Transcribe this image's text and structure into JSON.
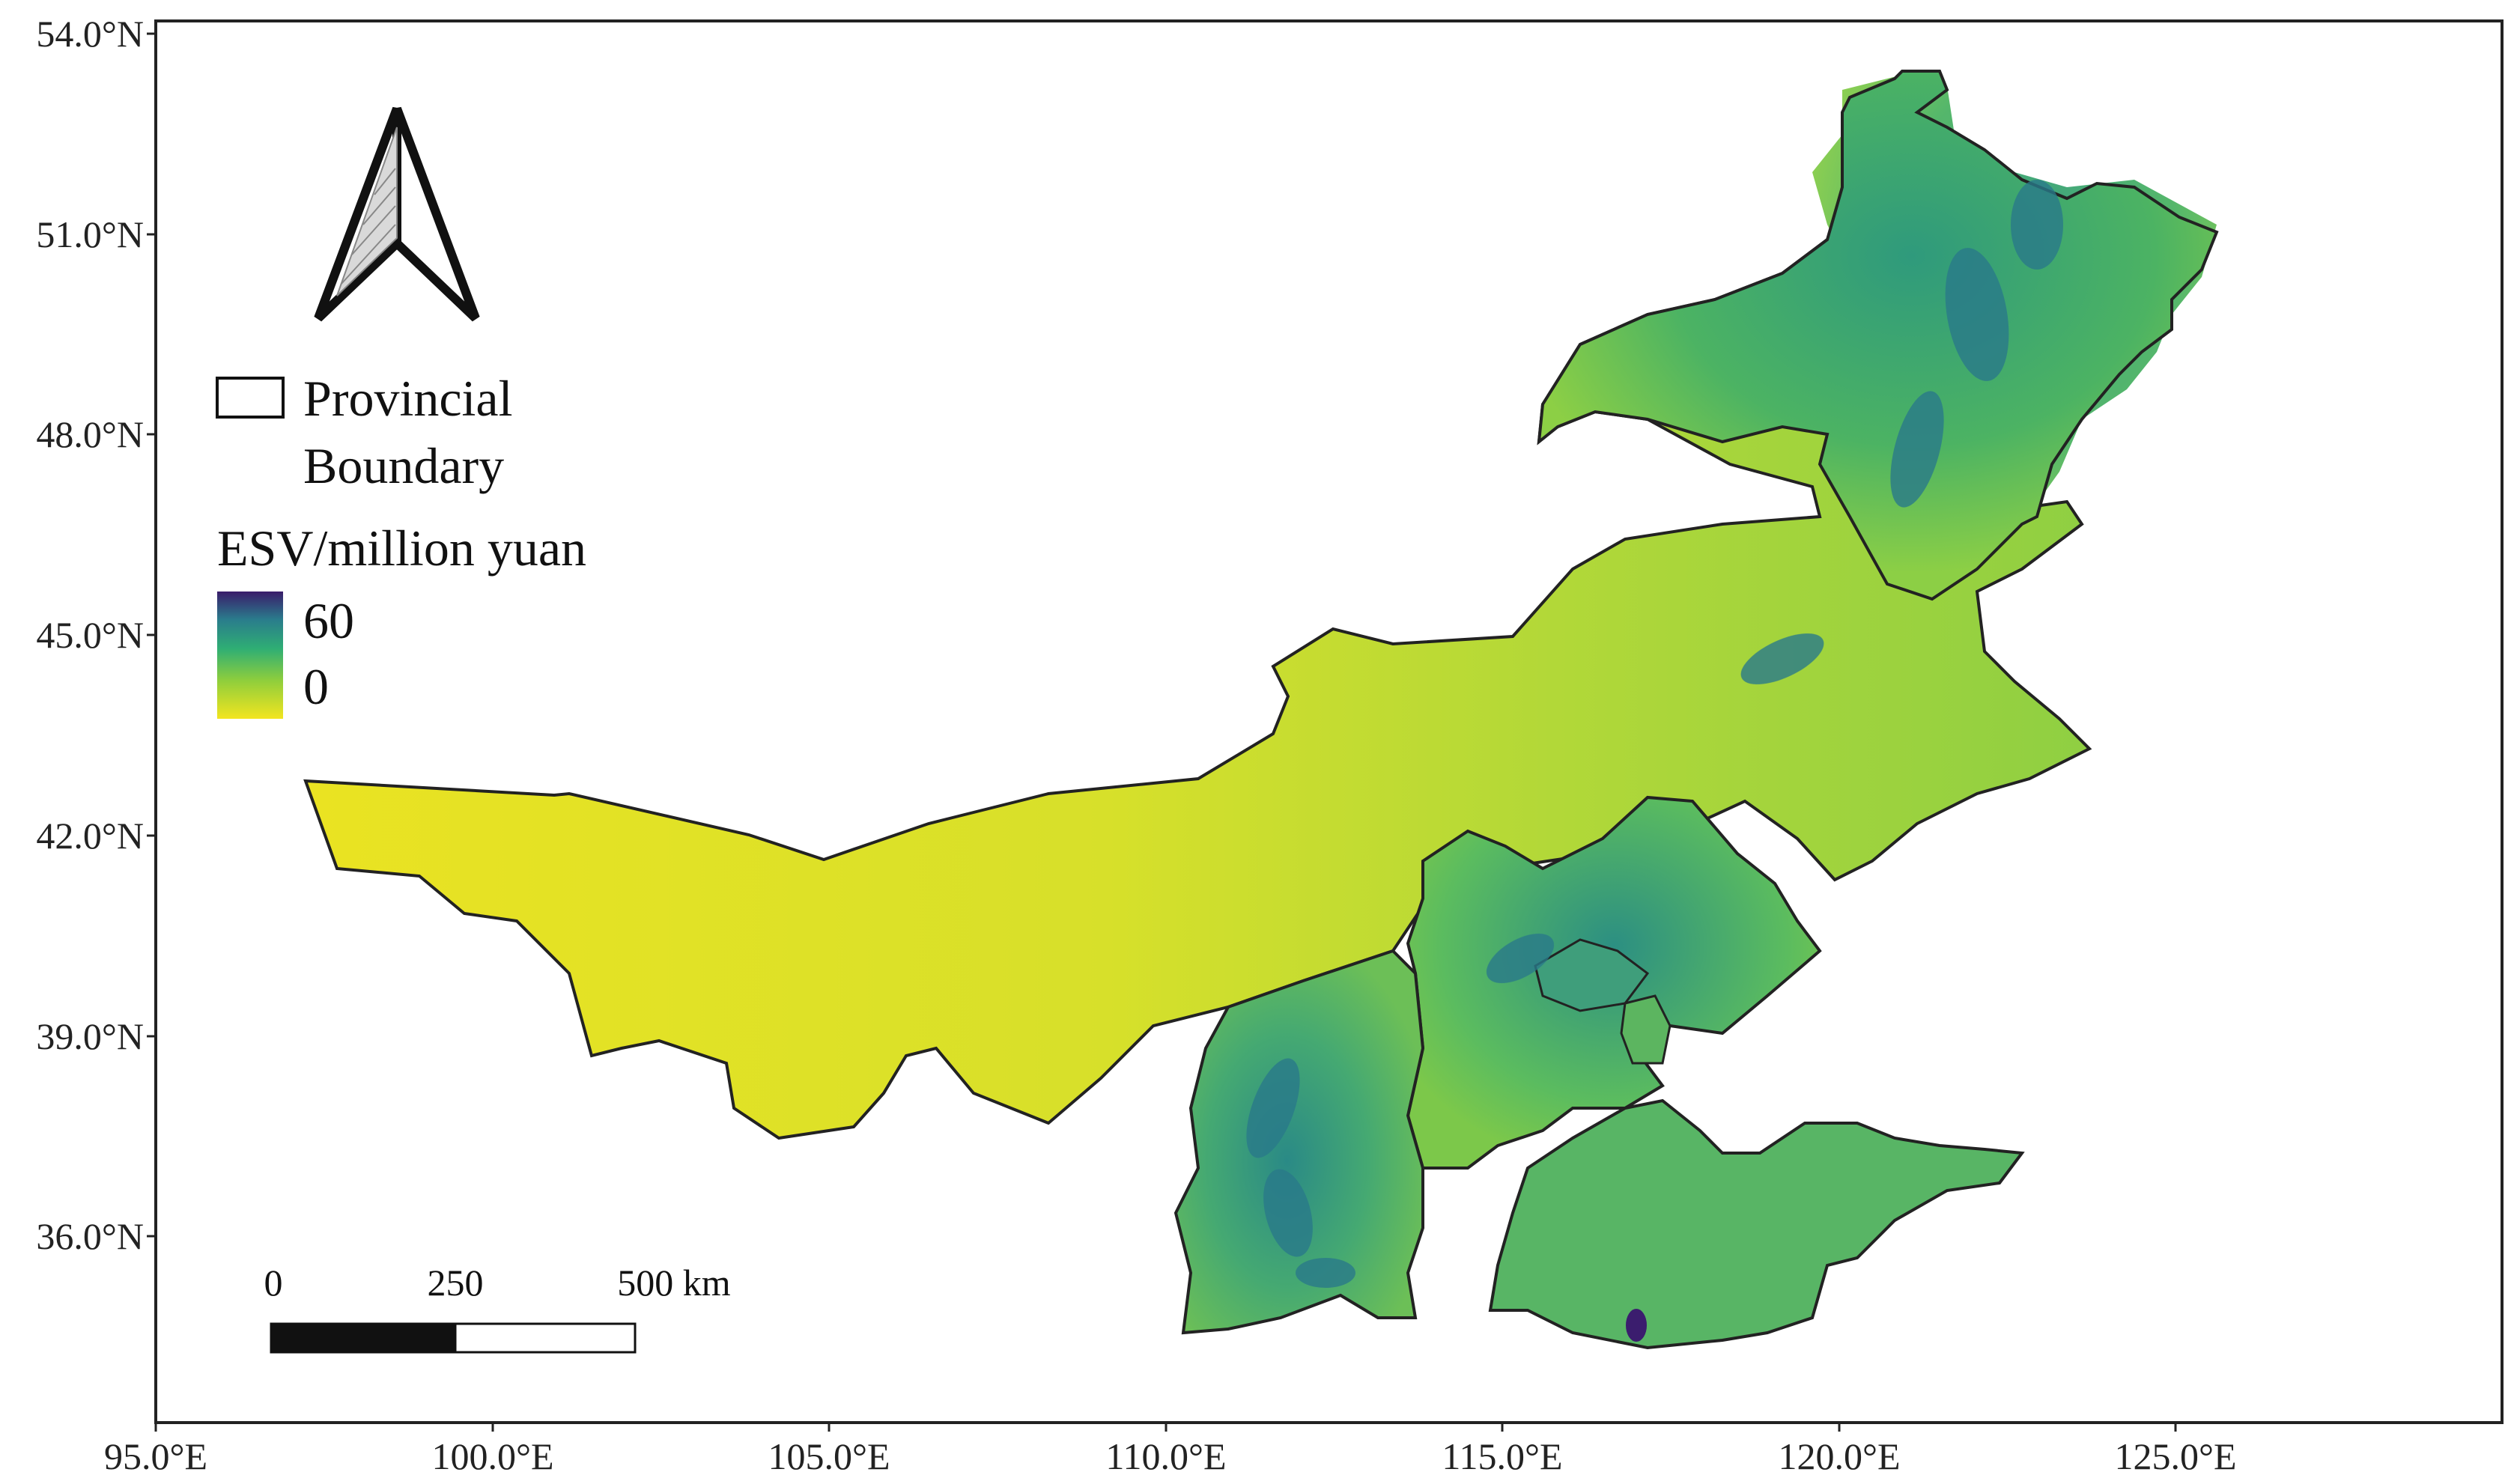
{
  "map": {
    "lat_labels": [
      "54.0°N",
      "51.0°N",
      "48.0°N",
      "45.0°N",
      "42.0°N",
      "39.0°N",
      "36.0°N"
    ],
    "lon_labels": [
      "95.0°E",
      "100.0°E",
      "105.0°E",
      "110.0°E",
      "115.0°E",
      "120.0°E",
      "125.0°E"
    ],
    "legend": {
      "boundary_label_line1": "Provincial",
      "boundary_label_line2": "Boundary",
      "color_title": "ESV/million yuan",
      "color_max": "60",
      "color_min": "0"
    },
    "scale_bar": {
      "label_0": "0",
      "label_250": "250",
      "label_500": "500 km"
    },
    "colors": {
      "low": "#e7e31f",
      "mid": "#7cc84a",
      "green": "#3fb56a",
      "teal": "#2a8a86",
      "high": "#3b1d6e",
      "boundary": "#222222"
    }
  }
}
